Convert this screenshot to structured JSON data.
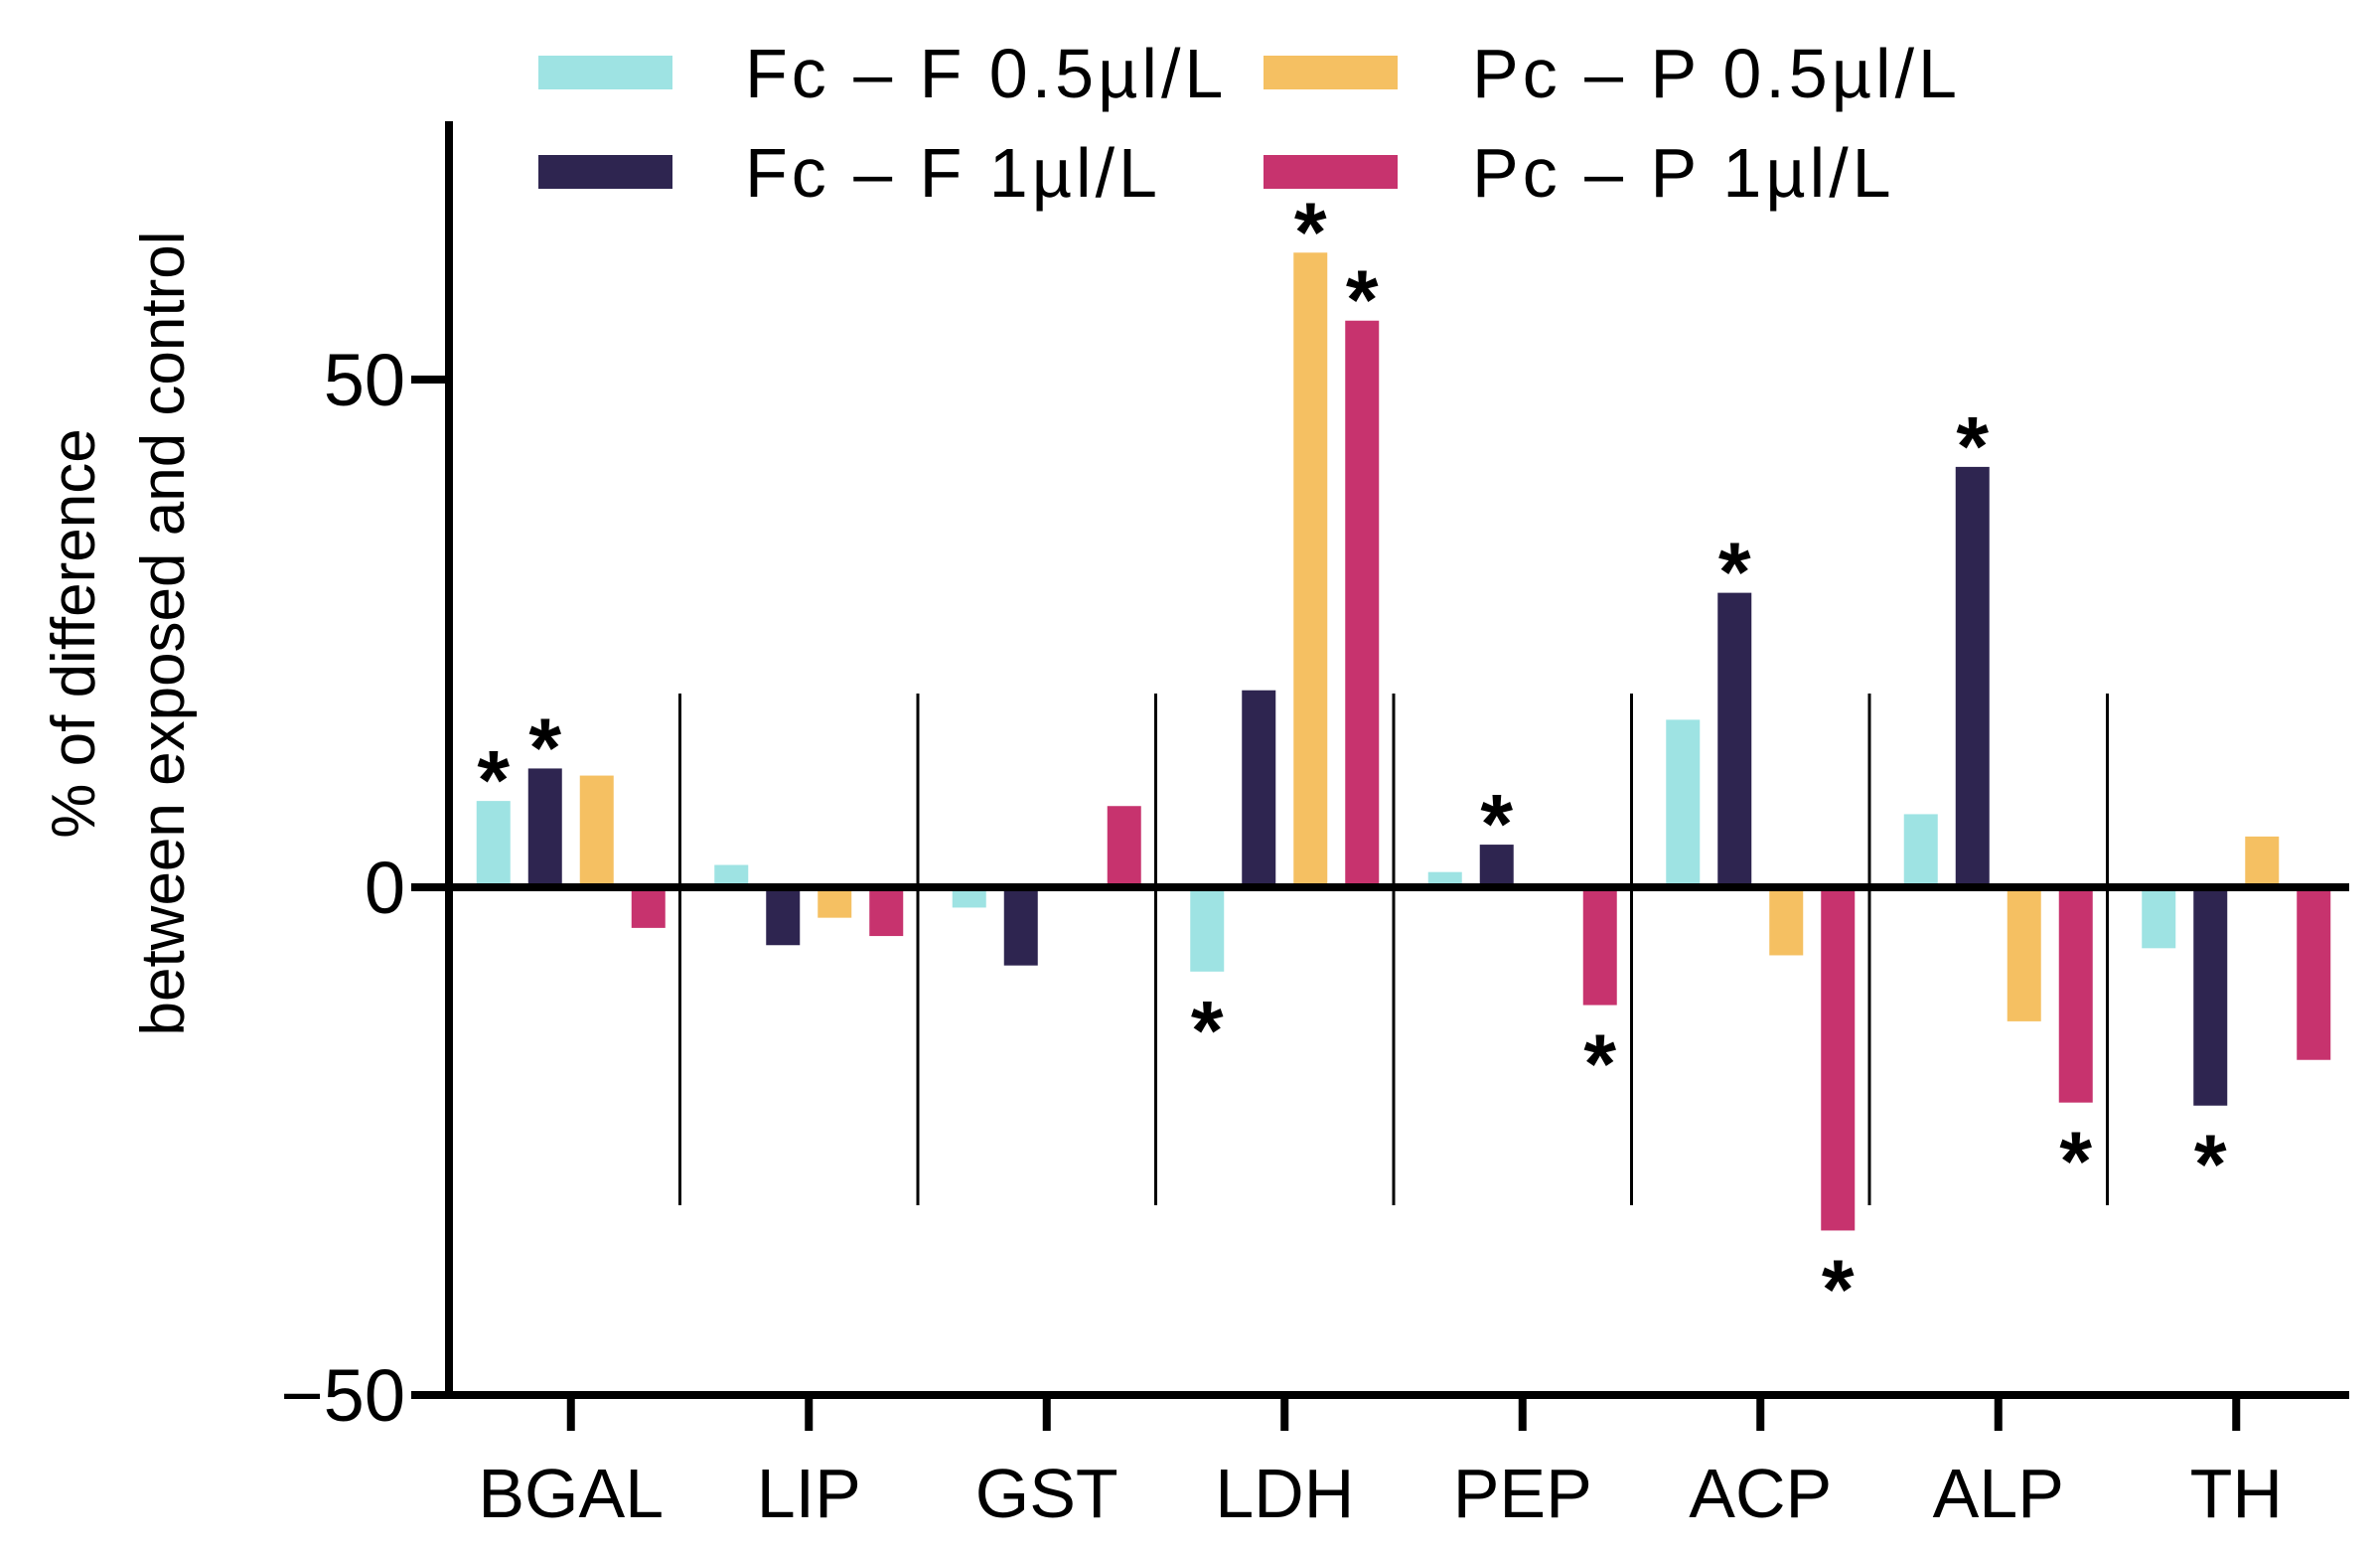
{
  "chart_data": {
    "type": "bar",
    "title": "",
    "xlabel": "",
    "ylabel_lines": [
      "% of difference",
      "between exposed and control"
    ],
    "ylim": [
      -50,
      75
    ],
    "yticks": [
      -50,
      0,
      50
    ],
    "ytick_labels": [
      "−50",
      "0",
      "50"
    ],
    "categories": [
      "BGAL",
      "LIP",
      "GST",
      "LDH",
      "PEP",
      "ACP",
      "ALP",
      "TH"
    ],
    "legend_position": "top",
    "series": [
      {
        "name": "Fc – F 0.5µl/L",
        "color": "#9ee3e3",
        "values": [
          8.5,
          2.2,
          -2.0,
          -8.3,
          1.5,
          16.5,
          7.2,
          -6.0
        ],
        "significant": [
          true,
          false,
          false,
          true,
          false,
          false,
          false,
          false
        ]
      },
      {
        "name": "Fc – F 1µl/L",
        "color": "#2e2550",
        "values": [
          11.7,
          -5.7,
          -7.7,
          19.4,
          4.2,
          29.0,
          41.4,
          -21.5
        ],
        "significant": [
          true,
          false,
          false,
          false,
          true,
          true,
          true,
          true
        ]
      },
      {
        "name": "Pc – P 0.5µl/L",
        "color": "#f5c062",
        "values": [
          11.0,
          -3.0,
          0.0,
          62.5,
          0.0,
          -6.7,
          -13.2,
          5.0
        ],
        "significant": [
          false,
          false,
          false,
          true,
          false,
          false,
          false,
          false
        ]
      },
      {
        "name": "Pc – P 1µl/L",
        "color": "#c7336e",
        "values": [
          -4.0,
          -4.8,
          8.0,
          55.8,
          -11.6,
          -33.8,
          -21.2,
          -17.0
        ],
        "significant": [
          false,
          false,
          false,
          true,
          true,
          true,
          true,
          false
        ]
      }
    ],
    "significance_marker": "*"
  }
}
